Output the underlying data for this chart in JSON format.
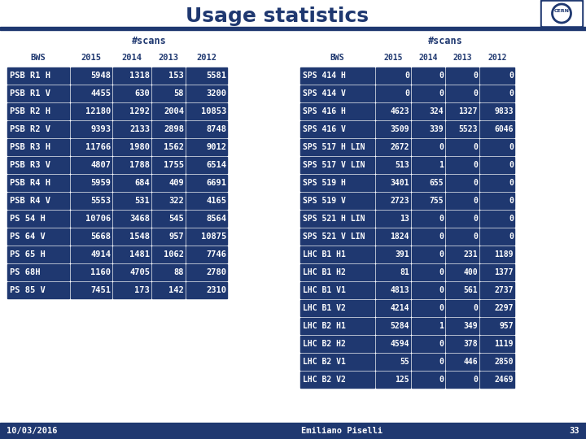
{
  "title": "Usage statistics",
  "title_color": "#1f3870",
  "bg_color": "#ffffff",
  "dark_blue": "#1f3870",
  "row_bg": "#1f3870",
  "row_fg": "#ffffff",
  "footer_left": "10/03/2016",
  "footer_right": "Emiliano Piselli",
  "page_num": "33",
  "scans_label": "#scans",
  "table1": {
    "headers": [
      "BWS",
      "2015",
      "2014",
      "2013",
      "2012"
    ],
    "rows": [
      [
        "PSB R1 H",
        "5948",
        "1318",
        "153",
        "5581"
      ],
      [
        "PSB R1 V",
        "4455",
        "630",
        "58",
        "3200"
      ],
      [
        "PSB R2 H",
        "12180",
        "1292",
        "2004",
        "10853"
      ],
      [
        "PSB R2 V",
        "9393",
        "2133",
        "2898",
        "8748"
      ],
      [
        "PSB R3 H",
        "11766",
        "1980",
        "1562",
        "9012"
      ],
      [
        "PSB R3 V",
        "4807",
        "1788",
        "1755",
        "6514"
      ],
      [
        "PSB R4 H",
        "5959",
        "684",
        "409",
        "6691"
      ],
      [
        "PSB R4 V",
        "5553",
        "531",
        "322",
        "4165"
      ],
      [
        "PS 54 H",
        "10706",
        "3468",
        "545",
        "8564"
      ],
      [
        "PS 64 V",
        "5668",
        "1548",
        "957",
        "10875"
      ],
      [
        "PS 65 H",
        "4914",
        "1481",
        "1062",
        "7746"
      ],
      [
        "PS 68H",
        "1160",
        "4705",
        "88",
        "2780"
      ],
      [
        "PS 85 V",
        "7451",
        "173",
        "142",
        "2310"
      ]
    ]
  },
  "table2": {
    "headers": [
      "BWS",
      "2015",
      "2014",
      "2013",
      "2012"
    ],
    "rows": [
      [
        "SPS 414 H",
        "0",
        "0",
        "0",
        "0"
      ],
      [
        "SPS 414 V",
        "0",
        "0",
        "0",
        "0"
      ],
      [
        "SPS 416 H",
        "4623",
        "324",
        "1327",
        "9833"
      ],
      [
        "SPS 416 V",
        "3509",
        "339",
        "5523",
        "6046"
      ],
      [
        "SPS 517 H LIN",
        "2672",
        "0",
        "0",
        "0"
      ],
      [
        "SPS 517 V LIN",
        "513",
        "1",
        "0",
        "0"
      ],
      [
        "SPS 519 H",
        "3401",
        "655",
        "0",
        "0"
      ],
      [
        "SPS 519 V",
        "2723",
        "755",
        "0",
        "0"
      ],
      [
        "SPS 521 H LIN",
        "13",
        "0",
        "0",
        "0"
      ],
      [
        "SPS 521 V LIN",
        "1824",
        "0",
        "0",
        "0"
      ],
      [
        "LHC B1 H1",
        "391",
        "0",
        "231",
        "1189"
      ],
      [
        "LHC B1 H2",
        "81",
        "0",
        "400",
        "1377"
      ],
      [
        "LHC B1 V1",
        "4813",
        "0",
        "561",
        "2737"
      ],
      [
        "LHC B1 V2",
        "4214",
        "0",
        "0",
        "2297"
      ],
      [
        "LHC B2 H1",
        "5284",
        "1",
        "349",
        "957"
      ],
      [
        "LHC B2 H2",
        "4594",
        "0",
        "378",
        "1119"
      ],
      [
        "LHC B2 V1",
        "55",
        "0",
        "446",
        "2850"
      ],
      [
        "LHC B2 V2",
        "125",
        "0",
        "0",
        "2469"
      ]
    ]
  }
}
